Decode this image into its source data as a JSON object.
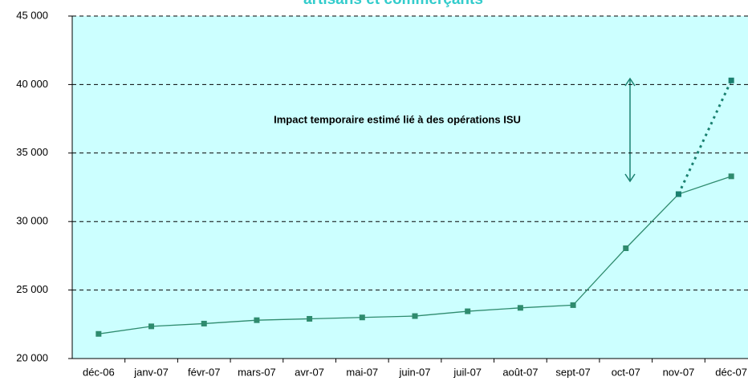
{
  "chart_data": {
    "type": "line",
    "title": "artisans et commerçants",
    "annotation": "Impact temporaire estimé lié à des opérations ISU",
    "categories": [
      "déc-06",
      "janv-07",
      "févr-07",
      "mars-07",
      "avr-07",
      "mai-07",
      "juin-07",
      "juil-07",
      "août-07",
      "sept-07",
      "oct-07",
      "nov-07",
      "déc-07"
    ],
    "series": [
      {
        "color": "#2e8b6e",
        "style": "solid",
        "values": [
          21800,
          22350,
          22550,
          22800,
          22900,
          23000,
          23100,
          23450,
          23700,
          23900,
          28050,
          32000,
          33300
        ]
      },
      {
        "color": "#1a8070",
        "style": "dotted",
        "values": [
          null,
          null,
          null,
          null,
          null,
          null,
          null,
          null,
          null,
          null,
          null,
          32000,
          40300
        ]
      }
    ],
    "ylim": [
      20000,
      45000
    ],
    "yticks": [
      {
        "value": 20000,
        "label": "20 000"
      },
      {
        "value": 25000,
        "label": "25 000"
      },
      {
        "value": 30000,
        "label": "30 000"
      },
      {
        "value": 35000,
        "label": "35 000"
      },
      {
        "value": 40000,
        "label": "40 000"
      },
      {
        "value": 45000,
        "label": "45 000"
      }
    ],
    "grid": true,
    "background": "#ccffff"
  }
}
